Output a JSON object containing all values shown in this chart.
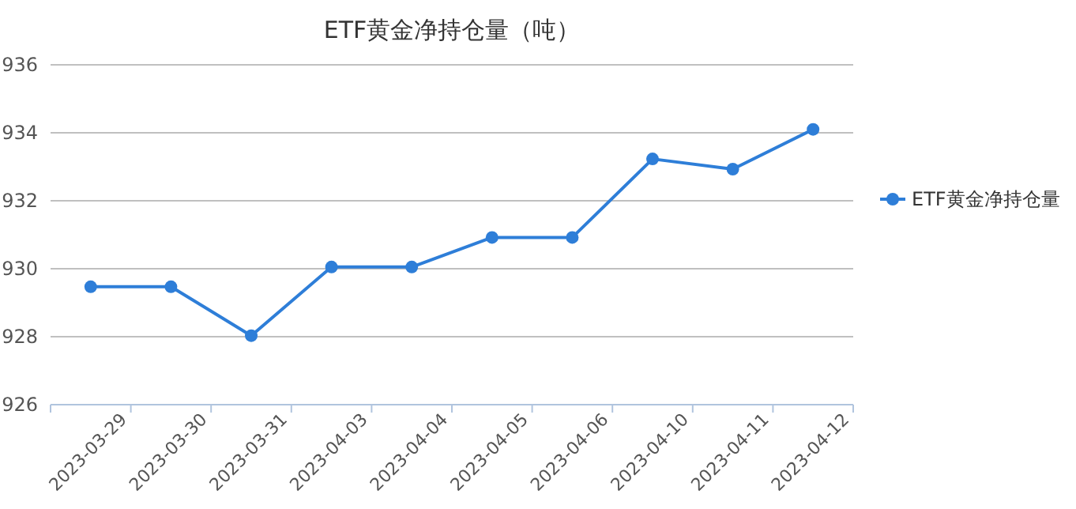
{
  "chart_data": {
    "type": "line",
    "title": "ETF黄金净持仓量（吨）",
    "categories": [
      "2023-03-29",
      "2023-03-30",
      "2023-03-31",
      "2023-04-03",
      "2023-04-04",
      "2023-04-05",
      "2023-04-06",
      "2023-04-10",
      "2023-04-11",
      "2023-04-12"
    ],
    "series": [
      {
        "name": "ETF黄金净持仓量",
        "color": "#2e7ed8",
        "values": [
          929.47,
          929.47,
          928.03,
          930.05,
          930.05,
          930.92,
          930.92,
          933.23,
          932.93,
          934.1
        ]
      }
    ],
    "ylim": [
      926,
      936
    ],
    "yticks": [
      926,
      928,
      930,
      932,
      934,
      936
    ],
    "grid": "y",
    "legend": "right",
    "marker": "circle"
  }
}
